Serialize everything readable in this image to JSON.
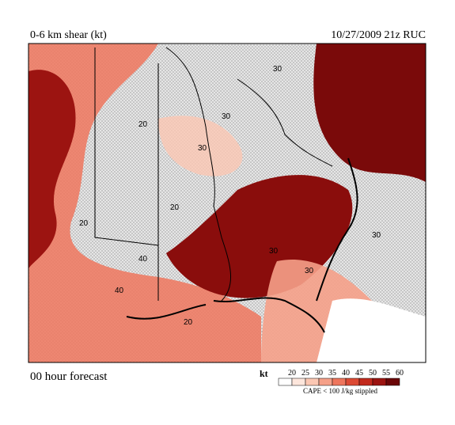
{
  "header": {
    "title": "0-6 km shear (kt)",
    "run": "10/27/2009  21z  RUC"
  },
  "map": {
    "contour_labels": [
      "30",
      "20",
      "30",
      "20",
      "30",
      "20",
      "30",
      "40",
      "40",
      "30",
      "20",
      "30"
    ]
  },
  "footer": {
    "forecast": "00 hour forecast"
  },
  "legend": {
    "unit": "kt",
    "ticks": [
      20,
      25,
      30,
      35,
      40,
      45,
      50,
      55,
      60
    ],
    "colors": [
      "#ffffff",
      "#fde6dc",
      "#fbc7b3",
      "#f5a088",
      "#ee765d",
      "#dc4a34",
      "#c22a1d",
      "#9c1411",
      "#6b0608"
    ],
    "note": "CAPE < 100 J/kg stippled"
  }
}
